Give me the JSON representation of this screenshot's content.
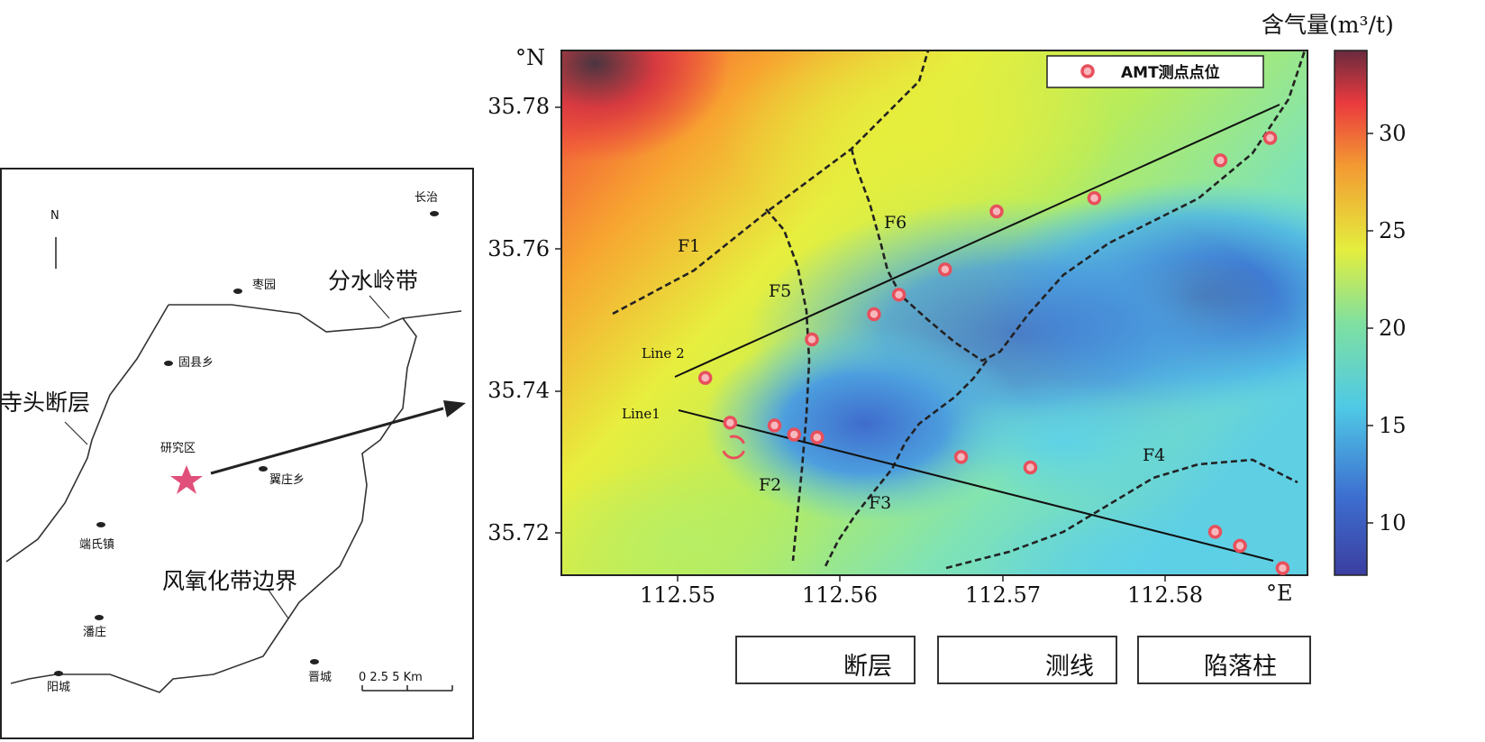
{
  "inset_map": {
    "north": "N",
    "places": [
      "长治",
      "枣园",
      "固县乡",
      "研究区",
      "翼庄乡",
      "端氏镇",
      "潘庄",
      "阳城",
      "晋城"
    ],
    "annotations": [
      "分水岭带",
      "寺头断层",
      "风氧化带边界"
    ],
    "scale_bar": "0  2.5  5 Km",
    "star_color": "#e0507a"
  },
  "main_map": {
    "colorbar_title": "含气量(m³/t)",
    "colorbar_ticks": [
      "30",
      "25",
      "20",
      "15",
      "10"
    ],
    "y_axis_label": "°N",
    "x_axis_label": "°E",
    "y_ticks": [
      "35.78",
      "35.76",
      "35.74",
      "35.72"
    ],
    "x_ticks": [
      "112.55",
      "112.56",
      "112.57",
      "112.58"
    ],
    "legend_points": "AMT测点点位",
    "faults": [
      "F1",
      "F2",
      "F3",
      "F4",
      "F5",
      "F6"
    ],
    "lines": [
      "Line 2",
      "Line1"
    ],
    "point_color": "#e8505c"
  },
  "bottom_legend": {
    "fault": "断层",
    "survey_line": "测线",
    "collapse_column": "陷落柱"
  },
  "chart_data": {
    "type": "heatmap",
    "xlim": [
      112.543,
      112.585
    ],
    "ylim": [
      35.7145,
      35.7895
    ],
    "color_range": [
      7.5,
      34.5
    ],
    "amt_points": [
      [
        112.5511,
        35.7427
      ],
      [
        112.5525,
        35.7363
      ],
      [
        112.555,
        35.7359
      ],
      [
        112.5561,
        35.7346
      ],
      [
        112.5574,
        35.7342
      ],
      [
        112.5571,
        35.7482
      ],
      [
        112.5606,
        35.7518
      ],
      [
        112.562,
        35.7546
      ],
      [
        112.5646,
        35.7582
      ],
      [
        112.5675,
        35.7665
      ],
      [
        112.573,
        35.7684
      ],
      [
        112.5801,
        35.7738
      ],
      [
        112.5829,
        35.777
      ],
      [
        112.5655,
        35.7314
      ],
      [
        112.5694,
        35.7299
      ],
      [
        112.5798,
        35.7207
      ],
      [
        112.5812,
        35.7187
      ],
      [
        112.5836,
        35.7155
      ]
    ],
    "line2": [
      [
        112.55,
        35.742
      ],
      [
        112.5839,
        35.7805
      ]
    ],
    "line1": [
      [
        112.5502,
        35.7373
      ],
      [
        112.584,
        35.716
      ]
    ],
    "collapse_column": [
      112.5527,
      35.7328
    ]
  }
}
